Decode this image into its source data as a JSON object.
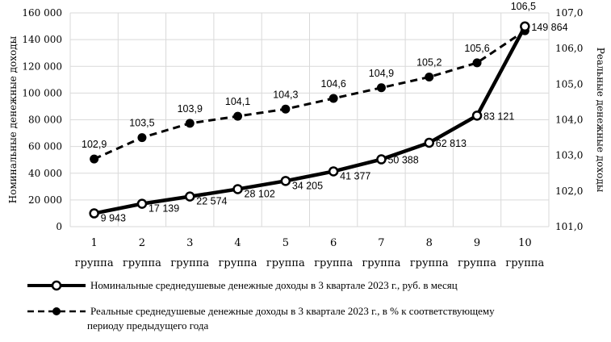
{
  "chart_data": {
    "type": "line",
    "categories": [
      "1 группа",
      "2 группа",
      "3 группа",
      "4 группа",
      "5 группа",
      "6 группа",
      "7 группа",
      "8 группа",
      "9 группа",
      "10 группа"
    ],
    "category_numbers": [
      "1",
      "2",
      "3",
      "4",
      "5",
      "6",
      "7",
      "8",
      "9",
      "10"
    ],
    "category_word": "группа",
    "ylabel_left": "Номинальные денежные доходы",
    "ylabel_right": "Реальные денежные доходы",
    "ylim_left": [
      0,
      160000
    ],
    "yticks_left": [
      "0",
      "20 000",
      "40 000",
      "60 000",
      "80 000",
      "100 000",
      "120 000",
      "140 000",
      "160 000"
    ],
    "ylim_right": [
      101.0,
      107.0
    ],
    "yticks_right": [
      "101,0",
      "102,0",
      "103,0",
      "104,0",
      "105,0",
      "106,0",
      "107,0"
    ],
    "grid": true,
    "legend_placement": "bottom",
    "series": [
      {
        "name": "Номинальные среднедушевые денежные доходы в 3 квартале 2023 г., руб. в месяц",
        "axis": "left",
        "style": "solid-open-markers",
        "values": [
          9943,
          17139,
          22574,
          28102,
          34205,
          41377,
          50388,
          62813,
          83121,
          149864
        ],
        "labels": [
          "9 943",
          "17 139",
          "22 574",
          "28 102",
          "34 205",
          "41 377",
          "50 388",
          "62 813",
          "83 121",
          "149 864"
        ]
      },
      {
        "name": "Реальные среднедушевые денежные доходы в 3 квартале 2023 г., в % к соответствующему периоду предыдущего года",
        "name_line1": "Реальные среднедушевые денежные доходы в 3 квартале 2023 г., в % к соответствующему",
        "name_line2": "периоду предыдущего года",
        "axis": "right",
        "style": "dashed-filled-markers",
        "values": [
          102.9,
          103.5,
          103.9,
          104.1,
          104.3,
          104.6,
          104.9,
          105.2,
          105.6,
          106.5
        ],
        "labels": [
          "102,9",
          "103,5",
          "103,9",
          "104,1",
          "104,3",
          "104,6",
          "104,9",
          "105,2",
          "105,6",
          "106,5"
        ]
      }
    ]
  }
}
